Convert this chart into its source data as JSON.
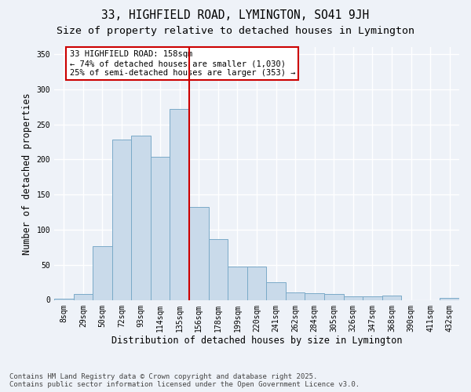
{
  "title_line1": "33, HIGHFIELD ROAD, LYMINGTON, SO41 9JH",
  "title_line2": "Size of property relative to detached houses in Lymington",
  "xlabel": "Distribution of detached houses by size in Lymington",
  "ylabel": "Number of detached properties",
  "categories": [
    "8sqm",
    "29sqm",
    "50sqm",
    "72sqm",
    "93sqm",
    "114sqm",
    "135sqm",
    "156sqm",
    "178sqm",
    "199sqm",
    "220sqm",
    "241sqm",
    "262sqm",
    "284sqm",
    "305sqm",
    "326sqm",
    "347sqm",
    "368sqm",
    "390sqm",
    "411sqm",
    "432sqm"
  ],
  "bar_heights": [
    2,
    8,
    76,
    228,
    234,
    204,
    272,
    132,
    87,
    47,
    47,
    25,
    11,
    10,
    8,
    5,
    5,
    6,
    0,
    0,
    3
  ],
  "bar_color": "#c9daea",
  "bar_edge_color": "#7aaac8",
  "vline_x_index": 7,
  "vline_color": "#cc0000",
  "annotation_text": "33 HIGHFIELD ROAD: 158sqm\n← 74% of detached houses are smaller (1,030)\n25% of semi-detached houses are larger (353) →",
  "annotation_box_color": "#cc0000",
  "footer_line1": "Contains HM Land Registry data © Crown copyright and database right 2025.",
  "footer_line2": "Contains public sector information licensed under the Open Government Licence v3.0.",
  "ylim": [
    0,
    360
  ],
  "yticks": [
    0,
    50,
    100,
    150,
    200,
    250,
    300,
    350
  ],
  "background_color": "#eef2f8",
  "grid_color": "#ffffff",
  "title_fontsize": 10.5,
  "subtitle_fontsize": 9.5,
  "axis_label_fontsize": 8.5,
  "tick_fontsize": 7,
  "footer_fontsize": 6.5,
  "annotation_fontsize": 7.5
}
